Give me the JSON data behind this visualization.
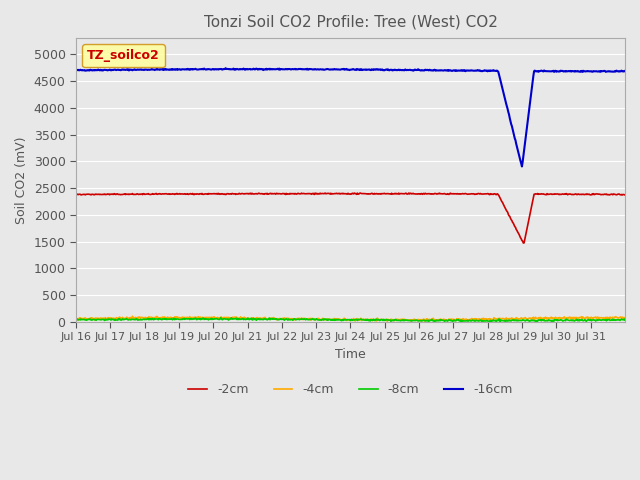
{
  "title": "Tonzi Soil CO2 Profile: Tree (West) CO2",
  "ylabel": "Soil CO2 (mV)",
  "xlabel": "Time",
  "legend_label": "TZ_soilco2",
  "ylim": [
    0,
    5300
  ],
  "yticks": [
    0,
    500,
    1000,
    1500,
    2000,
    2500,
    3000,
    3500,
    4000,
    4500,
    5000
  ],
  "xtick_positions": [
    0,
    1,
    2,
    3,
    4,
    5,
    6,
    7,
    8,
    9,
    10,
    11,
    12,
    13,
    14,
    15
  ],
  "xtick_labels": [
    "Jul 16",
    "Jul 17",
    "Jul 18",
    "Jul 19",
    "Jul 20",
    "Jul 21",
    "Jul 22",
    "Jul 23",
    "Jul 24",
    "Jul 25",
    "Jul 26",
    "Jul 27",
    "Jul 28",
    "Jul 29",
    "Jul 30",
    "Jul 31"
  ],
  "line_colors": {
    "m2cm": "#cc0000",
    "m4cm": "#ffaa00",
    "m8cm": "#00cc00",
    "m16cm": "#0000cc"
  },
  "background_color": "#e8e8e8",
  "plot_bg_color": "#e8e8e8",
  "title_color": "#555555",
  "axis_color": "#555555",
  "grid_color": "#ffffff",
  "legend_box_facecolor": "#ffff99",
  "legend_box_edgecolor": "#cc8800",
  "legend_text_color": "#cc0000",
  "n_days": 16,
  "pts_per_day": 48,
  "drop_start": 12.3,
  "m16_base": 4700,
  "m16_bottom_day": 13.0,
  "m16_bottom_val": 2900,
  "m16_end_day": 13.35,
  "m2_base": 2380,
  "m2_bottom_day": 13.05,
  "m2_bottom_val": 1450,
  "m2_end_day": 13.35,
  "m4_base": 60,
  "m8_base": 40
}
